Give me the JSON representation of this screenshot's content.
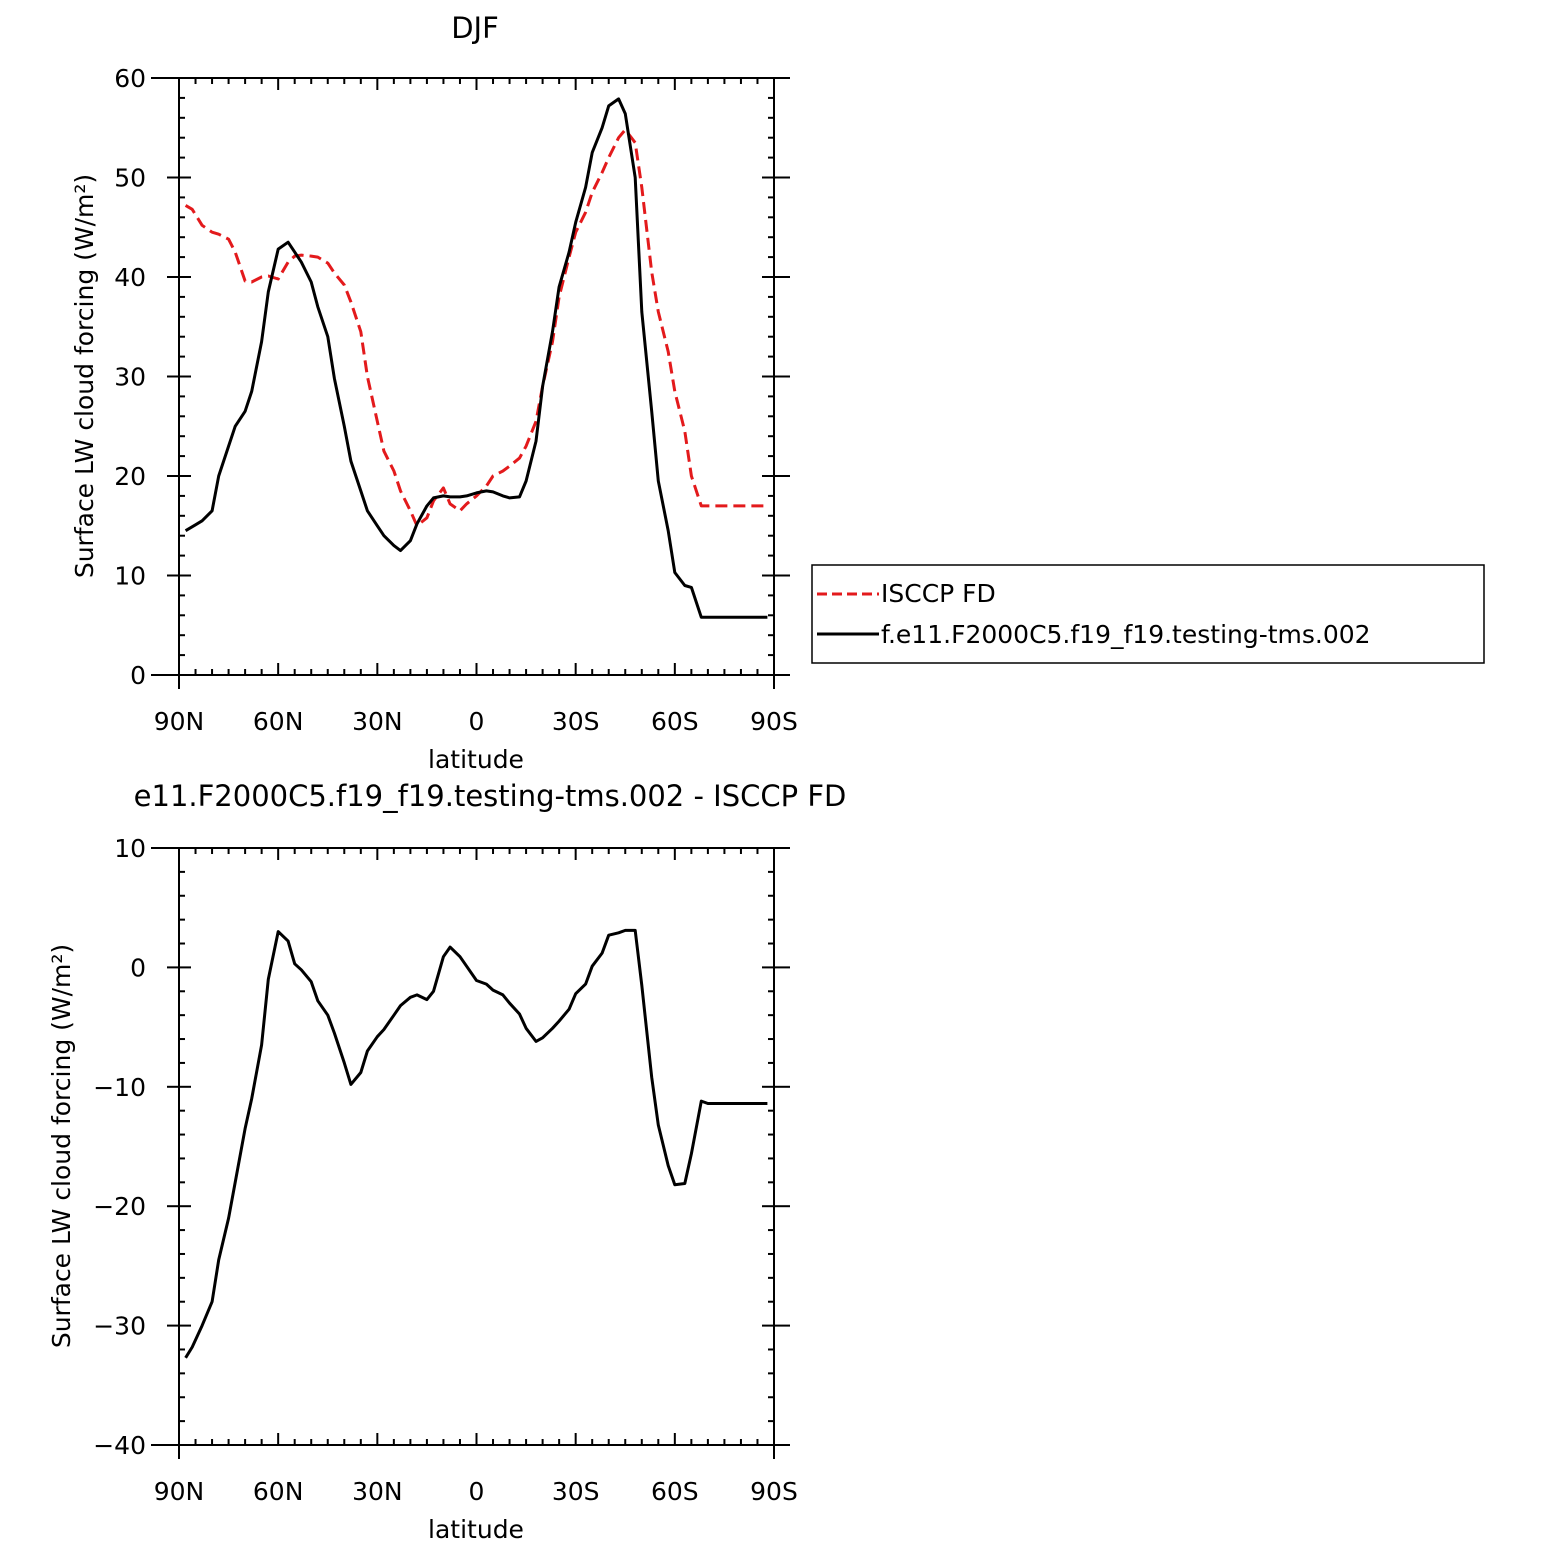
{
  "colors": {
    "background": "#ffffff",
    "axes": "#000000",
    "model_line": "#000000",
    "obs_line": "#e31a1c"
  },
  "chart_data": [
    {
      "type": "line",
      "title": "DJF",
      "xlabel": "latitude",
      "ylabel": "Surface LW cloud forcing (W/m²)",
      "xlim": [
        -90,
        90
      ],
      "ylim": [
        0,
        60
      ],
      "x_ticks": [
        -90,
        -60,
        -30,
        0,
        30,
        60,
        90
      ],
      "x_tick_labels": [
        "90N",
        "60N",
        "30N",
        "0",
        "30S",
        "60S",
        "90S"
      ],
      "y_ticks": [
        0,
        10,
        20,
        30,
        40,
        50,
        60
      ],
      "y_tick_labels": [
        "0",
        "10",
        "20",
        "30",
        "40",
        "50",
        "60"
      ],
      "legend_position": "right",
      "series": [
        {
          "name": "ISCCP FD",
          "style": "dashed",
          "color": "#e31a1c",
          "x": [
            -88,
            -86,
            -83,
            -80,
            -78,
            -75,
            -73,
            -70,
            -68,
            -65,
            -63,
            -60,
            -57,
            -55,
            -53,
            -50,
            -48,
            -45,
            -43,
            -40,
            -38,
            -35,
            -33,
            -30,
            -28,
            -25,
            -23,
            -20,
            -18,
            -15,
            -13,
            -10,
            -8,
            -5,
            -3,
            0,
            3,
            5,
            8,
            10,
            13,
            15,
            18,
            20,
            23,
            25,
            28,
            30,
            33,
            35,
            38,
            40,
            43,
            45,
            48,
            50,
            53,
            55,
            58,
            60,
            63,
            65,
            68,
            70,
            73,
            75,
            78,
            80,
            83,
            85,
            88
          ],
          "y": [
            47.2,
            46.8,
            45.2,
            44.5,
            44.3,
            43.8,
            42.5,
            39.6,
            39.5,
            40.0,
            40.1,
            39.8,
            41.5,
            42.1,
            42.2,
            42.1,
            42.0,
            41.4,
            40.4,
            39.2,
            37.5,
            34.5,
            30.0,
            25.5,
            22.5,
            20.5,
            18.5,
            16.5,
            15.0,
            15.8,
            17.5,
            18.8,
            17.2,
            16.5,
            17.2,
            18.0,
            19.0,
            20.0,
            20.5,
            21.0,
            21.8,
            23.0,
            25.5,
            29.0,
            33.5,
            38.0,
            42.0,
            44.5,
            46.5,
            48.5,
            50.5,
            52.0,
            54.0,
            54.8,
            53.5,
            49.0,
            40.5,
            36.5,
            32.5,
            28.5,
            24.5,
            20.0,
            17.0,
            17.0,
            17.0,
            17.0,
            17.0,
            17.0,
            17.0,
            17.0,
            17.0
          ]
        },
        {
          "name": "f.e11.F2000C5.f19_f19.testing-tms.002",
          "style": "solid",
          "color": "#000000",
          "x": [
            -88,
            -85,
            -83,
            -80,
            -78,
            -75,
            -73,
            -70,
            -68,
            -65,
            -63,
            -60,
            -57,
            -55,
            -53,
            -50,
            -48,
            -45,
            -43,
            -40,
            -38,
            -35,
            -33,
            -30,
            -28,
            -25,
            -23,
            -20,
            -18,
            -15,
            -13,
            -10,
            -8,
            -5,
            -3,
            0,
            3,
            5,
            8,
            10,
            13,
            15,
            18,
            20,
            23,
            25,
            28,
            30,
            33,
            35,
            38,
            40,
            43,
            45,
            48,
            50,
            53,
            55,
            58,
            60,
            63,
            65,
            68,
            70,
            73,
            75,
            78,
            80,
            83,
            85,
            88
          ],
          "y": [
            14.5,
            15.1,
            15.5,
            16.5,
            20.0,
            23.0,
            25.0,
            26.5,
            28.5,
            33.5,
            38.5,
            42.8,
            43.5,
            42.5,
            41.5,
            39.5,
            37.0,
            34.0,
            29.8,
            25.0,
            21.5,
            18.5,
            16.5,
            15.0,
            14.0,
            13.0,
            12.5,
            13.5,
            15.2,
            17.0,
            17.8,
            18.0,
            17.9,
            17.9,
            18.0,
            18.3,
            18.5,
            18.4,
            18.0,
            17.8,
            17.9,
            19.5,
            23.5,
            29.0,
            34.5,
            39.0,
            42.5,
            45.5,
            49.0,
            52.5,
            55.0,
            57.2,
            57.9,
            56.4,
            50.0,
            36.5,
            26.5,
            19.5,
            14.5,
            10.3,
            9.0,
            8.8,
            5.8,
            5.8,
            5.8,
            5.8,
            5.8,
            5.8,
            5.8,
            5.8,
            5.8
          ]
        }
      ]
    },
    {
      "type": "line",
      "title": "e11.F2000C5.f19_f19.testing-tms.002 - ISCCP FD",
      "xlabel": "latitude",
      "ylabel": "Surface LW cloud forcing (W/m²)",
      "xlim": [
        -90,
        90
      ],
      "ylim": [
        -40,
        10
      ],
      "x_ticks": [
        -90,
        -60,
        -30,
        0,
        30,
        60,
        90
      ],
      "x_tick_labels": [
        "90N",
        "60N",
        "30N",
        "0",
        "30S",
        "60S",
        "90S"
      ],
      "y_ticks": [
        -40,
        -30,
        -20,
        -10,
        0,
        10
      ],
      "y_tick_labels": [
        "−40",
        "−30",
        "−20",
        "−10",
        "0",
        "10"
      ],
      "series": [
        {
          "style": "solid",
          "color": "#000000",
          "x": [
            -88,
            -86,
            -83,
            -80,
            -78,
            -75,
            -73,
            -70,
            -68,
            -65,
            -63,
            -60,
            -57,
            -55,
            -53,
            -50,
            -48,
            -45,
            -43,
            -40,
            -38,
            -35,
            -33,
            -30,
            -28,
            -25,
            -23,
            -20,
            -18,
            -15,
            -13,
            -10,
            -8,
            -5,
            -3,
            0,
            3,
            5,
            8,
            10,
            13,
            15,
            18,
            20,
            23,
            25,
            28,
            30,
            33,
            35,
            38,
            40,
            43,
            45,
            48,
            50,
            53,
            55,
            58,
            60,
            63,
            65,
            68,
            70,
            73,
            75,
            78,
            80,
            83,
            85,
            88
          ],
          "y": [
            -32.7,
            -31.8,
            -30.0,
            -28.0,
            -24.5,
            -21.0,
            -18.0,
            -13.5,
            -11.0,
            -6.5,
            -1.0,
            3.0,
            2.2,
            0.3,
            -0.2,
            -1.2,
            -2.8,
            -4.0,
            -5.5,
            -8.0,
            -9.8,
            -8.8,
            -7.0,
            -5.8,
            -5.2,
            -4.0,
            -3.2,
            -2.5,
            -2.3,
            -2.7,
            -2.0,
            0.9,
            1.7,
            0.9,
            0.1,
            -1.1,
            -1.4,
            -1.9,
            -2.3,
            -3.0,
            -3.9,
            -5.1,
            -6.2,
            -5.9,
            -5.1,
            -4.5,
            -3.5,
            -2.2,
            -1.4,
            0.1,
            1.2,
            2.7,
            2.9,
            3.1,
            3.1,
            -1.5,
            -9.2,
            -13.2,
            -16.6,
            -18.2,
            -18.1,
            -15.6,
            -11.2,
            -11.4,
            -11.4,
            -11.4,
            -11.4,
            -11.4,
            -11.4,
            -11.4,
            -11.4
          ]
        }
      ]
    }
  ]
}
